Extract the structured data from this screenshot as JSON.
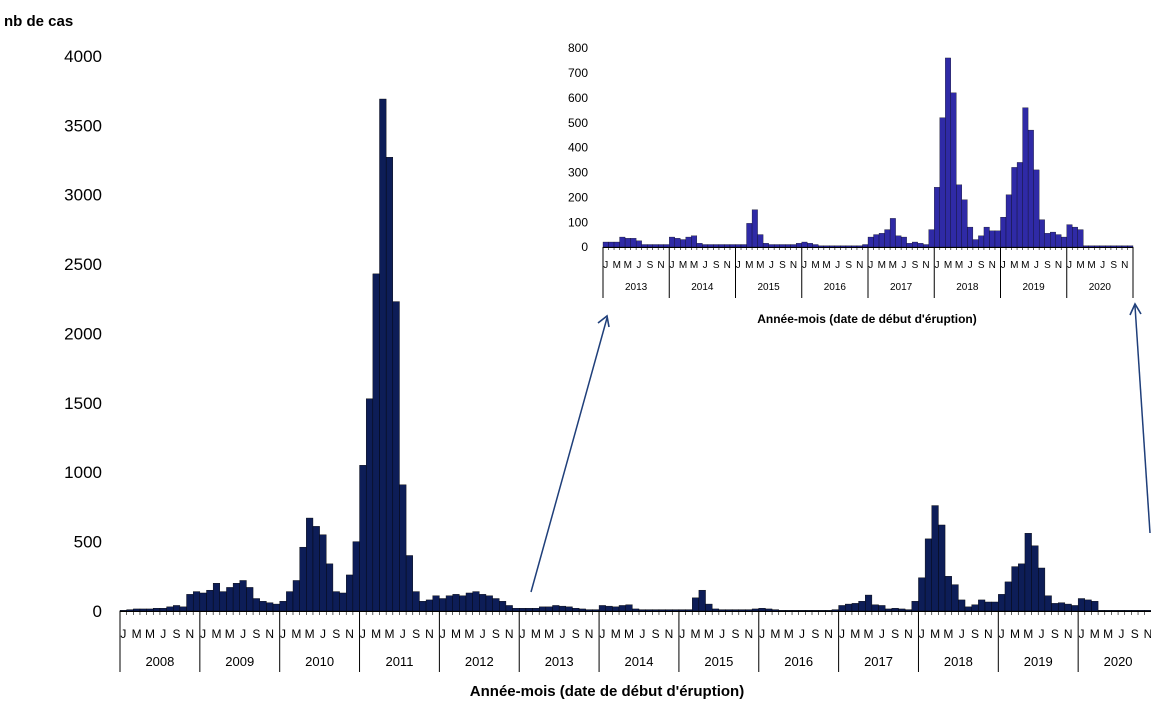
{
  "chart_data": [
    {
      "type": "bar",
      "ylabel": "nb de cas",
      "xlabel": "Année-mois (date de début d'éruption)",
      "ylim": [
        0,
        4000
      ],
      "yticks": [
        "0",
        "500",
        "1000",
        "1500",
        "2000",
        "2500",
        "3000",
        "3500",
        "4000"
      ],
      "month_ticks": [
        "J",
        "M",
        "M",
        "J",
        "S",
        "N"
      ],
      "years": [
        "2008",
        "2009",
        "2010",
        "2011",
        "2012",
        "2013",
        "2014",
        "2015",
        "2016",
        "2017",
        "2018",
        "2019",
        "2020"
      ],
      "bar_color": "#0d1d57",
      "values": [
        5,
        10,
        15,
        15,
        15,
        20,
        20,
        30,
        40,
        30,
        120,
        140,
        130,
        150,
        200,
        140,
        170,
        200,
        220,
        170,
        90,
        70,
        60,
        50,
        70,
        140,
        220,
        460,
        670,
        610,
        550,
        340,
        140,
        130,
        260,
        500,
        1050,
        1530,
        2430,
        3690,
        3270,
        2230,
        910,
        400,
        140,
        70,
        80,
        110,
        90,
        110,
        120,
        110,
        130,
        140,
        120,
        110,
        90,
        70,
        40,
        20,
        20,
        20,
        20,
        30,
        30,
        40,
        35,
        30,
        20,
        15,
        10,
        10,
        40,
        35,
        30,
        40,
        45,
        15,
        10,
        10,
        10,
        10,
        10,
        10,
        10,
        10,
        95,
        150,
        50,
        15,
        10,
        10,
        10,
        10,
        10,
        15,
        20,
        15,
        10,
        5,
        5,
        5,
        5,
        5,
        5,
        5,
        5,
        10,
        40,
        50,
        55,
        70,
        115,
        45,
        40,
        15,
        20,
        15,
        10,
        70,
        240,
        520,
        760,
        620,
        250,
        190,
        80,
        30,
        45,
        80,
        65,
        65,
        120,
        210,
        320,
        340,
        560,
        470,
        310,
        110,
        55,
        60,
        50,
        40,
        90,
        80,
        70,
        5,
        5,
        5,
        5,
        5,
        5,
        5,
        5,
        5
      ]
    },
    {
      "type": "bar",
      "xlabel": "Année-mois (date de début d'éruption)",
      "ylim": [
        0,
        800
      ],
      "yticks": [
        "0",
        "100",
        "200",
        "300",
        "400",
        "500",
        "600",
        "700",
        "800"
      ],
      "month_ticks": [
        "J",
        "M",
        "M",
        "J",
        "S",
        "N"
      ],
      "years": [
        "2013",
        "2014",
        "2015",
        "2016",
        "2017",
        "2018",
        "2019",
        "2020"
      ],
      "bar_color": "#2f2aa6",
      "values": [
        20,
        20,
        20,
        40,
        35,
        35,
        25,
        10,
        10,
        10,
        10,
        10,
        40,
        35,
        30,
        40,
        45,
        15,
        10,
        10,
        10,
        10,
        10,
        10,
        10,
        10,
        95,
        150,
        50,
        15,
        10,
        10,
        10,
        10,
        10,
        15,
        20,
        15,
        10,
        5,
        5,
        5,
        5,
        5,
        5,
        5,
        5,
        10,
        40,
        50,
        55,
        70,
        115,
        45,
        40,
        15,
        20,
        15,
        10,
        70,
        240,
        520,
        760,
        620,
        250,
        190,
        80,
        30,
        45,
        80,
        65,
        65,
        120,
        210,
        320,
        340,
        560,
        470,
        310,
        110,
        55,
        60,
        50,
        40,
        90,
        80,
        70,
        5,
        5,
        5,
        5,
        5,
        5,
        5,
        5,
        5
      ]
    }
  ],
  "arrow_color": "#1f3f7a"
}
